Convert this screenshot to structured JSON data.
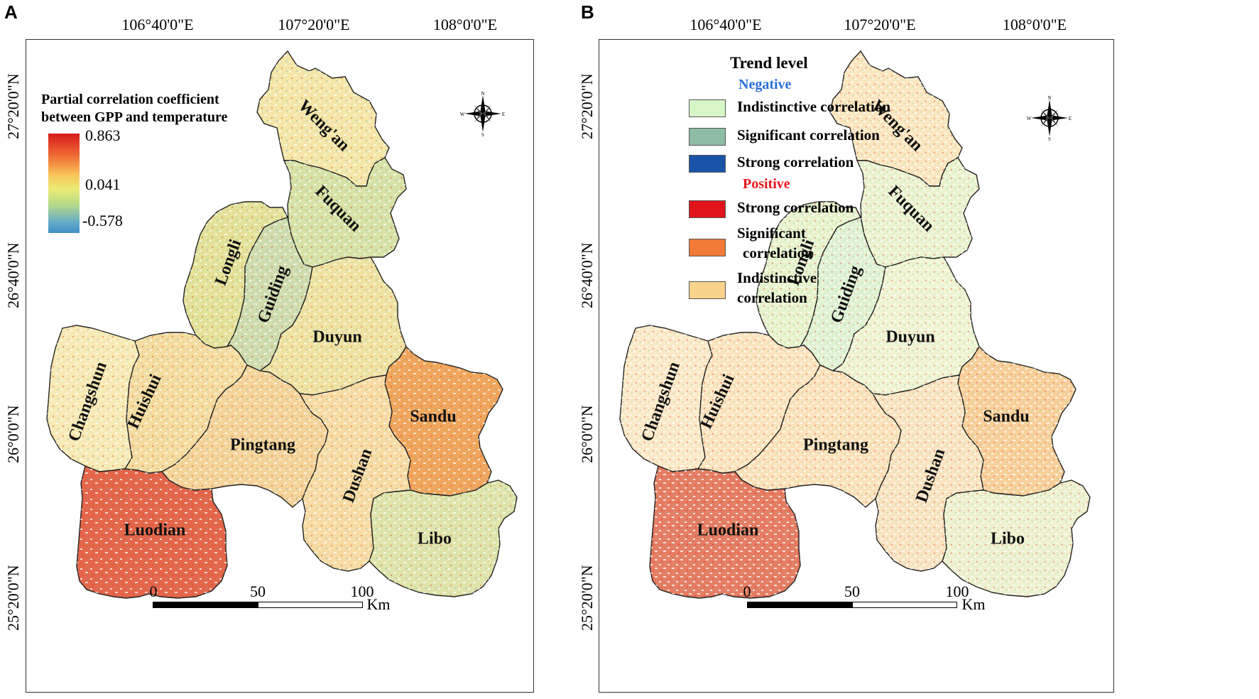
{
  "panels": [
    {
      "letter": "A",
      "lon_labels": [
        "106°40'0\"E",
        "107°20'0\"E",
        "108°0'0\"E"
      ],
      "lat_labels": [
        "27°20'0\"N",
        "26°40'0\"N",
        "26°0'0\"N",
        "25°20'0\"N"
      ],
      "legend": {
        "title_lines": [
          "Partial correlation coefficient",
          "between GPP and temperature"
        ],
        "max": "0.863",
        "mid": "0.041",
        "min": "-0.578"
      },
      "scalebar": {
        "ticks": [
          "0",
          "50",
          "100"
        ],
        "unit": "Km"
      }
    },
    {
      "letter": "B",
      "lon_labels": [
        "106°40'0\"E",
        "107°20'0\"E",
        "108°0'0\"E"
      ],
      "lat_labels": [
        "27°20'0\"N",
        "26°40'0\"N",
        "26°0'0\"N",
        "25°20'0\"N"
      ],
      "legend": {
        "title": "Trend level",
        "negative_label": "Negative",
        "positive_label": "Positive",
        "negative_items": [
          {
            "label": "Indistinctive  correlation",
            "color": "#d6f6c8"
          },
          {
            "label": "Significant  correlation",
            "color": "#8fbca4"
          },
          {
            "label": "Strong  correlation",
            "color": "#1a54a8"
          }
        ],
        "positive_items": [
          {
            "label_lines": [
              "Strong  correlation"
            ],
            "color": "#e0141a"
          },
          {
            "label_lines": [
              "Significant",
              "correlation"
            ],
            "color": "#f07a36"
          },
          {
            "label_lines": [
              "Indistinctive",
              "correlation"
            ],
            "color": "#f9d38c"
          }
        ],
        "negative_color": "#2a6fd8",
        "positive_color": "#e8161c"
      },
      "scalebar": {
        "ticks": [
          "0",
          "50",
          "100"
        ],
        "unit": "Km"
      }
    }
  ],
  "counties": [
    "Weng'an",
    "Fuquan",
    "Longli",
    "Guiding",
    "Duyun",
    "Changshun",
    "Huishui",
    "Pingtang",
    "Sandu",
    "Dushan",
    "Luodian",
    "Libo"
  ],
  "county_fills_A": {
    "Weng'an": "#f3e6a8",
    "Fuquan": "#d7e2a6",
    "Longli": "#e4e29a",
    "Guiding": "#cfdcae",
    "Duyun": "#eee2a2",
    "Changshun": "#f7eab4",
    "Huishui": "#f4dca0",
    "Pingtang": "#f4d49a",
    "Sandu": "#f0a65c",
    "Dushan": "#f6dca4",
    "Luodian": "#e4664a",
    "Libo": "#dee4aa"
  },
  "county_fills_B": {
    "Weng'an": "#fbe6bf",
    "Fuquan": "#eaf3d0",
    "Longli": "#e6f3cd",
    "Guiding": "#dff2d2",
    "Duyun": "#eef3d2",
    "Changshun": "#fbe9c8",
    "Huishui": "#fbe4bf",
    "Pingtang": "#fbe2bb",
    "Sandu": "#f7d09a",
    "Dushan": "#f9e4c2",
    "Luodian": "#e57d62",
    "Libo": "#eef1cf"
  },
  "compass_letters": {
    "n": "N",
    "e": "E",
    "s": "S",
    "w": "W"
  }
}
